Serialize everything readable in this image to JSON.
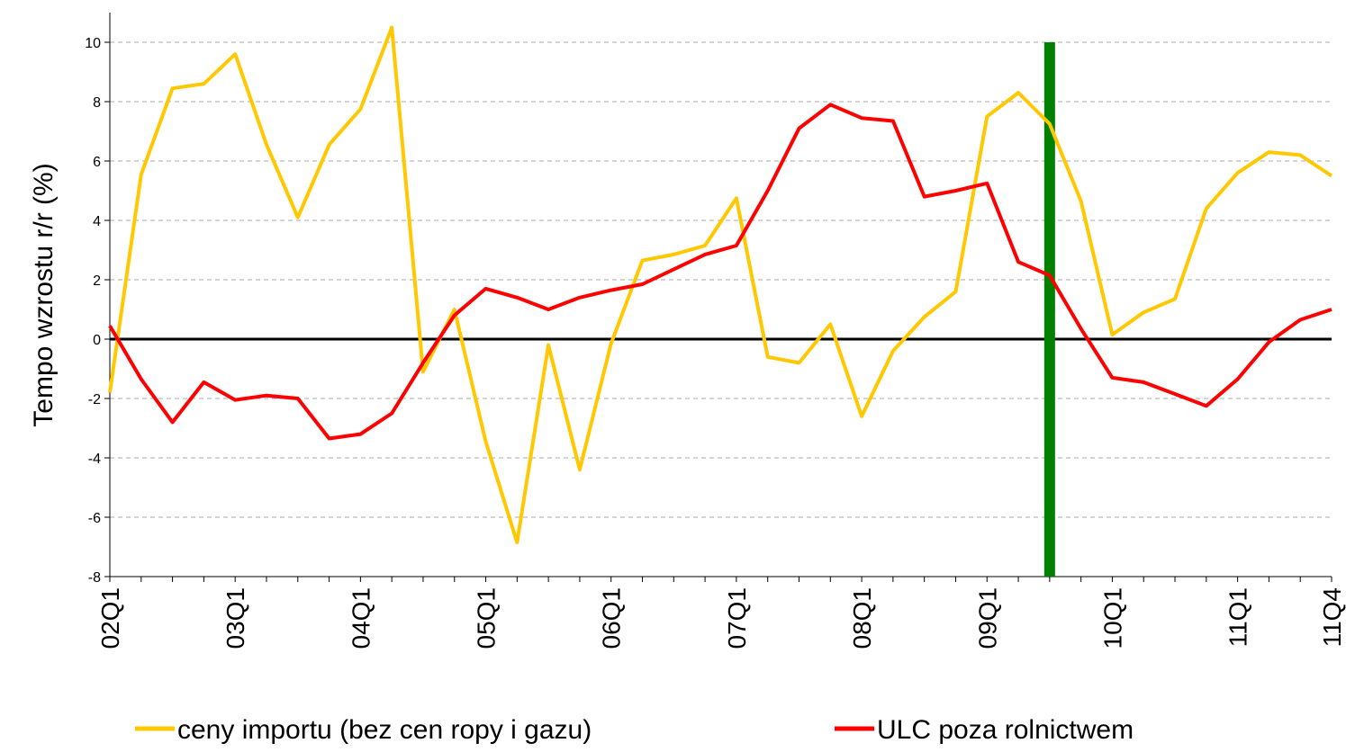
{
  "chart_data": {
    "type": "line",
    "y_label": "Tempo wzrostu r/r (%)",
    "categories": [
      "02Q1",
      null,
      null,
      null,
      "03Q1",
      null,
      null,
      null,
      "04Q1",
      null,
      null,
      null,
      "05Q1",
      null,
      null,
      null,
      "06Q1",
      null,
      null,
      null,
      "07Q1",
      null,
      null,
      null,
      "08Q1",
      null,
      null,
      null,
      "09Q1",
      null,
      null,
      null,
      "10Q1",
      null,
      null,
      null,
      "11Q1",
      null,
      null,
      "11Q4"
    ],
    "series": [
      {
        "name": "ceny importu (bez cen ropy i gazu)",
        "color": "#FFC800",
        "values": [
          -1.8,
          5.55,
          8.45,
          8.6,
          9.6,
          6.55,
          4.1,
          6.55,
          7.75,
          10.5,
          -1.1,
          1.0,
          -3.45,
          -6.85,
          -0.2,
          -4.4,
          -0.15,
          2.65,
          2.85,
          3.15,
          4.75,
          -0.6,
          -0.8,
          0.5,
          -2.6,
          -0.4,
          0.75,
          1.6,
          7.5,
          8.3,
          7.25,
          4.65,
          0.15,
          0.9,
          1.35,
          4.4,
          5.6,
          6.3,
          6.2,
          5.5
        ]
      },
      {
        "name": "ULC poza rolnictwem",
        "color": "#FF0000",
        "values": [
          0.45,
          -1.35,
          -2.8,
          -1.45,
          -2.05,
          -1.9,
          -2.0,
          -3.35,
          -3.2,
          -2.5,
          -0.8,
          0.8,
          1.7,
          1.4,
          1.0,
          1.4,
          1.65,
          1.85,
          2.35,
          2.85,
          3.15,
          5.0,
          7.1,
          7.9,
          7.45,
          7.35,
          4.8,
          5.0,
          5.25,
          2.6,
          2.15,
          0.35,
          -1.3,
          -1.45,
          -1.85,
          -2.25,
          -1.35,
          -0.1,
          0.65,
          1.0
        ]
      }
    ],
    "marker": {
      "category_index": 30,
      "color": "#008000"
    },
    "ylim": [
      -8,
      11
    ],
    "yticks": [
      -8,
      -6,
      -4,
      -2,
      0,
      2,
      4,
      6,
      8,
      10
    ],
    "grid": true,
    "legend": "bottom"
  }
}
